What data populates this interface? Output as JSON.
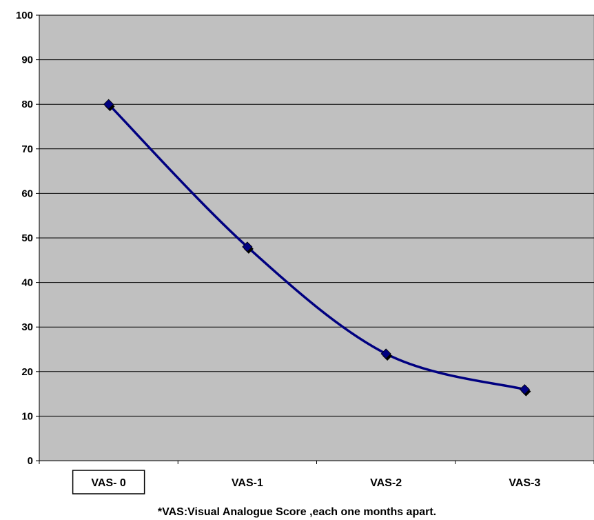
{
  "chart_data": {
    "type": "line",
    "categories": [
      "VAS- 0",
      "VAS-1",
      "VAS-2",
      "VAS-3"
    ],
    "series": [
      {
        "values": [
          80,
          48,
          24,
          16
        ]
      }
    ],
    "ylim": [
      0,
      100
    ],
    "yticks": [
      0,
      10,
      20,
      30,
      40,
      50,
      60,
      70,
      80,
      90,
      100
    ],
    "grid": true,
    "smooth": true,
    "boxed_category": "VAS- 0",
    "colors": {
      "plot_background": "#c0c0c0",
      "line": "#000080",
      "marker": "#000080",
      "gridline": "#000000"
    }
  },
  "footnote": "*VAS:Visual Analogue Score ,each one months apart."
}
